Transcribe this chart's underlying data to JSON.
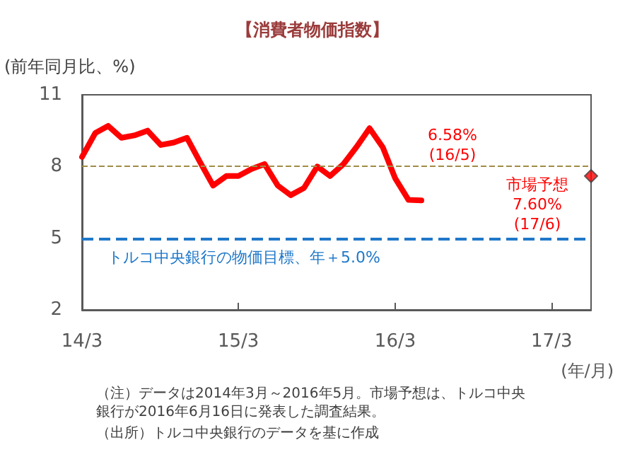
{
  "chart_data": {
    "type": "line",
    "title": "【消費者物価指数】",
    "ylabel": "(前年同月比、%)",
    "xlabel": "(年/月)",
    "x": [
      "2014-03",
      "2014-04",
      "2014-05",
      "2014-06",
      "2014-07",
      "2014-08",
      "2014-09",
      "2014-10",
      "2014-11",
      "2014-12",
      "2015-01",
      "2015-02",
      "2015-03",
      "2015-04",
      "2015-05",
      "2015-06",
      "2015-07",
      "2015-08",
      "2015-09",
      "2015-10",
      "2015-11",
      "2015-12",
      "2016-01",
      "2016-02",
      "2016-03",
      "2016-04",
      "2016-05"
    ],
    "series": [
      {
        "color": "#ff0000",
        "marker": "none",
        "values": [
          8.4,
          9.4,
          9.7,
          9.2,
          9.3,
          9.5,
          8.9,
          9.0,
          9.2,
          8.2,
          7.2,
          7.6,
          7.6,
          7.9,
          8.1,
          7.2,
          6.8,
          7.1,
          8.0,
          7.6,
          8.1,
          8.8,
          9.6,
          8.8,
          7.5,
          6.6,
          6.58
        ]
      },
      {
        "type": "scatter",
        "color": "#ff0000",
        "marker": "diamond",
        "x": [
          "2017-06"
        ],
        "values": [
          7.6
        ]
      }
    ],
    "xlim": [
      "2014-03",
      "2017-06"
    ],
    "xticks": [
      {
        "value": "2014-03",
        "label": "14/3"
      },
      {
        "value": "2015-03",
        "label": "15/3"
      },
      {
        "value": "2016-03",
        "label": "16/3"
      },
      {
        "value": "2017-03",
        "label": "17/3"
      }
    ],
    "ylim": [
      2,
      11
    ],
    "yticks": [
      2,
      5,
      8,
      11
    ],
    "ref_lines": [
      {
        "axis": "y",
        "value": 8,
        "color": "#a08c46",
        "line_style": "dashed"
      },
      {
        "axis": "y",
        "value": 5,
        "color": "#1f78c8",
        "line_style": "dashed",
        "label": "トルコ中央銀行の物価目標、年＋5.0%"
      }
    ],
    "annotations": [
      {
        "text": "6.58%\n(16/5)",
        "x": "2016-05",
        "y": 6.58
      },
      {
        "text": "市場予想\n7.60%\n(17/6)",
        "x": "2017-06",
        "y": 7.6
      },
      "（注）データは2014年3月～2016年5月。市場予想は、トルコ中央銀行が2016年6月16日に発表した調査結果。",
      "（出所）トルコ中央銀行のデータを基に作成"
    ],
    "grid": false
  }
}
